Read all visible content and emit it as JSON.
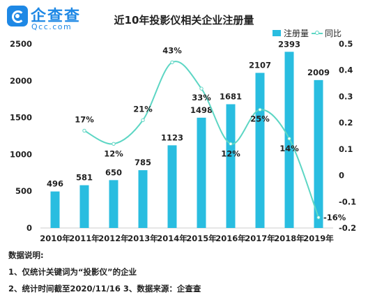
{
  "logo": {
    "cn": "企查查",
    "en": "Qcc.com"
  },
  "colors": {
    "bar": "#29bde0",
    "line": "#5dd6c4",
    "brand": "#1e88e5"
  },
  "chart_data": {
    "type": "bar",
    "title": "近10年投影仪相关企业注册量",
    "categories": [
      "2010年",
      "2011年",
      "2012年",
      "2013年",
      "2014年",
      "2015年",
      "2016年",
      "2017年",
      "2018年",
      "2019年"
    ],
    "series": [
      {
        "name": "注册量",
        "type": "bar",
        "axis": "left",
        "values": [
          496,
          581,
          650,
          785,
          1123,
          1498,
          1681,
          2107,
          2393,
          2009
        ],
        "labels": [
          "496",
          "581",
          "650",
          "785",
          "1123",
          "1498",
          "1681",
          "2107",
          "2393",
          "2009"
        ]
      },
      {
        "name": "同比",
        "type": "line",
        "axis": "right",
        "values": [
          null,
          0.17,
          0.12,
          0.21,
          0.43,
          0.33,
          0.12,
          0.25,
          0.14,
          -0.16
        ],
        "labels": [
          "",
          "17%",
          "12%",
          "21%",
          "43%",
          "33%",
          "12%",
          "25%",
          "14%",
          "-16%"
        ]
      }
    ],
    "y_left": {
      "ylim": [
        0,
        2500
      ],
      "ticks": [
        "0",
        "500",
        "1000",
        "1500",
        "2000",
        "2500"
      ]
    },
    "y_right": {
      "ylim": [
        -0.2,
        0.5
      ],
      "ticks": [
        "-0.2",
        "-0.1",
        "0",
        "0.1",
        "0.2",
        "0.3",
        "0.4",
        "0.5"
      ]
    },
    "legend": "top-right",
    "grid": false
  },
  "notes": {
    "heading": "数据说明:",
    "line1": "1、仅统计关键词为“投影仪”的企业",
    "line2": "2、统计时间截至2020/11/16 3、数据来源：企查查"
  }
}
